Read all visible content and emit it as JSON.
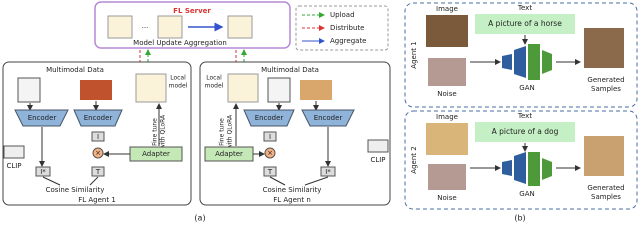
{
  "panel_a": {
    "label": "(a)",
    "server": {
      "title": "FL Server",
      "caption": "Model Update Aggregation"
    },
    "legend": [
      "Upload",
      "Distribute",
      "Aggregate"
    ],
    "agents": [
      {
        "title": "FL Agent 1",
        "data_label": "Multimodal Data",
        "local_model": [
          "Local",
          "model"
        ],
        "encoders": [
          "Encoder",
          "Encoder"
        ],
        "fine_tune": [
          "Fine tune",
          "with QLoRA"
        ],
        "clip": "CLIP",
        "adapter": "Adapter",
        "features": [
          "I*",
          "I",
          "T"
        ],
        "similarity": "Cosine Similarity"
      },
      {
        "title": "FL Agent n",
        "data_label": "Multimodal Data",
        "local_model": [
          "Local",
          "model"
        ],
        "encoders": [
          "Encoder",
          "Encoder"
        ],
        "fine_tune": [
          "Fine tune",
          "with QLoRA"
        ],
        "clip": "CLIP",
        "adapter": "Adapter",
        "features": [
          "I*",
          "I",
          "T"
        ],
        "similarity": "Cosine Similarity"
      }
    ]
  },
  "panel_b": {
    "label": "(b)",
    "agents": [
      {
        "name": "Agent 1",
        "image_label": "Image",
        "text_label": "Text",
        "prompt": "A picture of a horse",
        "noise_label": "Noise",
        "model": "GAN",
        "output": [
          "Generated",
          "Samples"
        ]
      },
      {
        "name": "Agent 2",
        "image_label": "Image",
        "text_label": "Text",
        "prompt": "A picture of a dog",
        "noise_label": "Noise",
        "model": "GAN",
        "output": [
          "Generated",
          "Samples"
        ]
      }
    ]
  }
}
